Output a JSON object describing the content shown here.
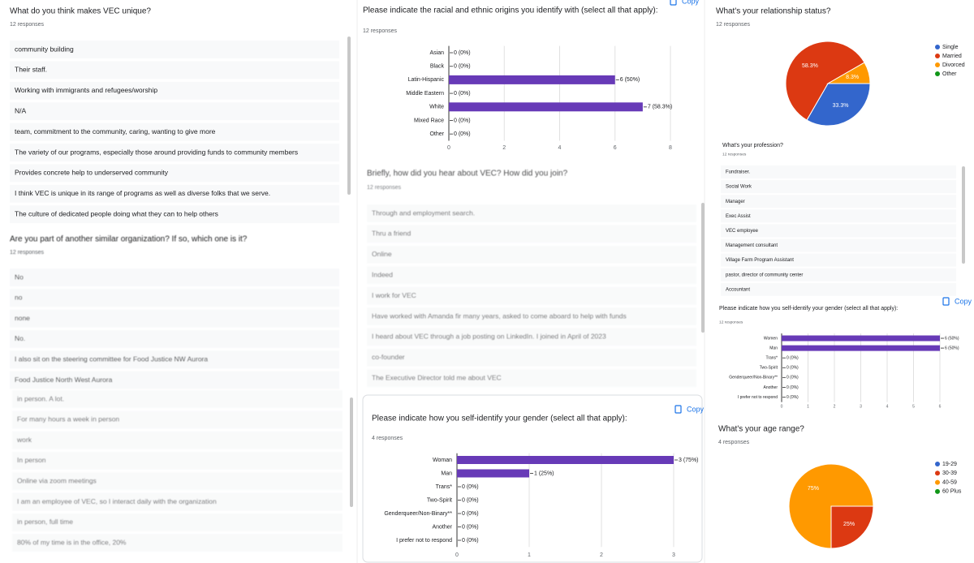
{
  "panels": [
    {
      "title": "What do you think makes VEC unique?",
      "response_count": "12 responses",
      "responses": [
        "community building",
        "Their staff.",
        "Working with immigrants and refugees/worship",
        "N/A",
        "team, commitment to the community, caring, wanting to give more",
        "The variety of our programs, especially those around providing funds to community members",
        "Provides concrete help to underserved community",
        "I think VEC is unique in its range of programs as well as diverse folks that we serve.",
        "The culture of dedicated people doing what they can to help others"
      ]
    },
    {
      "title": "Are you part of another similar organization? If so, which one is it?",
      "response_count": "12 responses",
      "responses": [
        "No",
        "no",
        "none",
        "No.",
        "I also sit on the steering committee for Food Justice NW Aurora",
        "Food Justice North West Aurora"
      ]
    },
    {
      "responses": [
        "in person. A lot.",
        "For many hours a week in person",
        "work",
        "In person",
        "Online via zoom meetings",
        "I am an employee of VEC, so I interact daily with the organization",
        "in person, full time",
        "80% of my time is in the office, 20%"
      ]
    },
    {
      "title": "Briefly, how did you hear about VEC? How did you join?",
      "response_count": "12 responses",
      "responses": [
        "Through and employment search.",
        "Thru a friend",
        "Online",
        "Indeed",
        "I work for VEC",
        "Have worked with Amanda fir many years, asked to come aboard to help with funds",
        "I heard about VEC through a job posting on LinkedIn. I joined in April of 2023",
        "co-founder",
        "The Executive Director told me about VEC"
      ]
    },
    {
      "title": "What's your profession?",
      "response_count": "12 responses",
      "responses": [
        "Fundraiser.",
        "Social Work",
        "Manager",
        "Exec Assist",
        "VEC employee",
        "Management consultant",
        "Village Farm Program Assistant",
        "pastor, director of community center",
        "Accountant"
      ]
    }
  ],
  "chart_data": [
    {
      "type": "bar",
      "orientation": "horizontal",
      "title": "Please indicate the racial and ethnic origins you identify with (select all that apply):",
      "subtitle": "12 responses",
      "button": "Copy",
      "categories": [
        "Asian",
        "Black",
        "Latin-Hispanic",
        "Middle Eastern",
        "White",
        "Mixed Race",
        "Other"
      ],
      "values": [
        0,
        0,
        6,
        0,
        7,
        0,
        0
      ],
      "value_labels": [
        "0 (0%)",
        "0 (0%)",
        "6 (50%)",
        "0 (0%)",
        "7 (58.3%)",
        "0 (0%)",
        "0 (0%)"
      ],
      "xlim": [
        0,
        8
      ],
      "xticks": [
        0,
        2,
        4,
        6,
        8
      ],
      "color": "#673ab7",
      "grid": true
    },
    {
      "type": "bar",
      "orientation": "horizontal",
      "title": "Please indicate how you self-identify your gender (select all that apply):",
      "subtitle": "4 responses",
      "button": "Copy",
      "categories": [
        "Woman",
        "Man",
        "Trans*",
        "Two-Spirit",
        "Genderqueer/Non-Binary**",
        "Another",
        "I prefer not to respond"
      ],
      "values": [
        3,
        1,
        0,
        0,
        0,
        0,
        0
      ],
      "value_labels": [
        "3 (75%)",
        "1 (25%)",
        "0 (0%)",
        "0 (0%)",
        "0 (0%)",
        "0 (0%)",
        "0 (0%)"
      ],
      "xlim": [
        0,
        3
      ],
      "xticks": [
        0,
        1,
        2,
        3
      ],
      "color": "#673ab7",
      "grid": true
    },
    {
      "type": "pie",
      "title": "What's your relationship status?",
      "subtitle": "12 responses",
      "categories": [
        "Single",
        "Married",
        "Divorced",
        "Other"
      ],
      "values": [
        33.3,
        58.3,
        8.3,
        0
      ],
      "value_labels": [
        "33.3%",
        "58.3%",
        "8.3%",
        null
      ],
      "colors": [
        "#3366cc",
        "#dc3912",
        "#ff9900",
        "#109618"
      ],
      "legend": "right"
    },
    {
      "type": "bar",
      "orientation": "horizontal",
      "title": "Please indicate how you self-identify your gender (select all that apply):",
      "subtitle": "12 responses",
      "button": "Copy",
      "categories": [
        "Women",
        "Man",
        "Trans*",
        "Two-Spirit",
        "Genderqueer/Non-Binary**",
        "Another",
        "I prefer not to respond"
      ],
      "values": [
        6,
        6,
        0,
        0,
        0,
        0,
        0
      ],
      "value_labels": [
        "6 (50%)",
        "6 (50%)",
        "0 (0%)",
        "0 (0%)",
        "0 (0%)",
        "0 (0%)",
        "0 (0%)"
      ],
      "xlim": [
        0,
        6
      ],
      "xticks": [
        0,
        1,
        2,
        3,
        4,
        5,
        6
      ],
      "color": "#673ab7",
      "grid": true
    },
    {
      "type": "pie",
      "title": "What's your age range?",
      "subtitle": "4 responses",
      "categories": [
        "19-29",
        "30-39",
        "40-59",
        "60 Plus"
      ],
      "values": [
        0,
        25,
        75,
        0
      ],
      "value_labels": [
        null,
        "25%",
        "75%",
        null
      ],
      "colors": [
        "#3366cc",
        "#dc3912",
        "#ff9900",
        "#109618"
      ],
      "legend": "right"
    }
  ]
}
